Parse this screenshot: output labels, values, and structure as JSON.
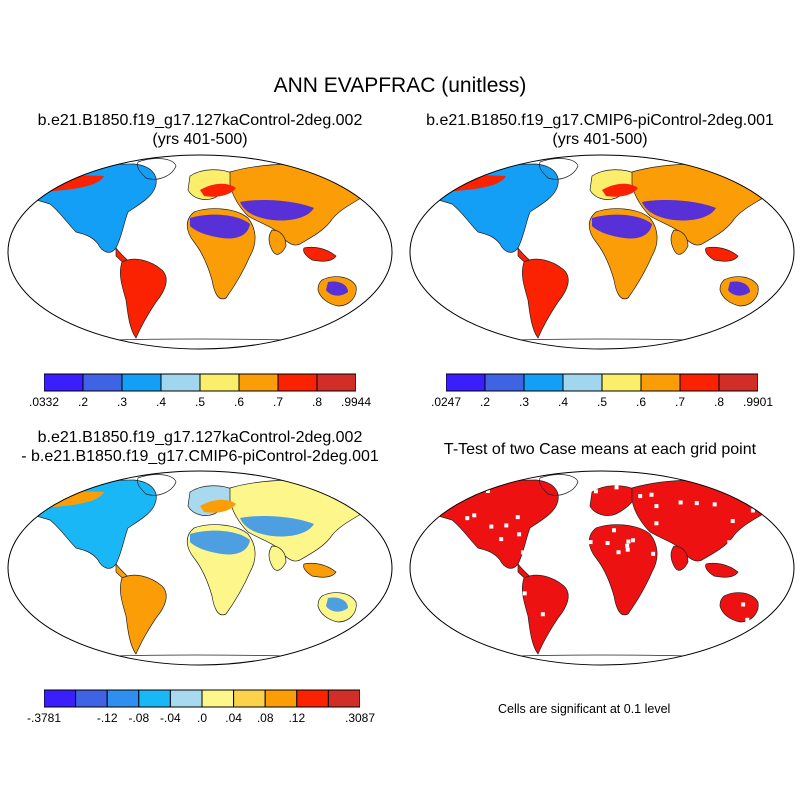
{
  "title": "ANN EVAPFRAC (unitless)",
  "panels": {
    "tl": {
      "line1": "b.e21.B1850.f19_g17.127kaControl-2deg.002",
      "line2": "(yrs 401-500)"
    },
    "tr": {
      "line1": "b.e21.B1850.f19_g17.CMIP6-piControl-2deg.001",
      "line2": "(yrs 401-500)"
    },
    "bl": {
      "line1": "b.e21.B1850.f19_g17.127kaControl-2deg.002",
      "line2": "- b.e21.B1850.f19_g17.CMIP6-piControl-2deg.001"
    },
    "br": {
      "line1": "T-Test of two Case means at each grid point"
    }
  },
  "colorbars": {
    "case1": {
      "colors": [
        "#3a1efb",
        "#3f63e5",
        "#139ff5",
        "#a0d6ee",
        "#fbee6b",
        "#fb9d07",
        "#fa2200",
        "#d22e28"
      ],
      "labels": [
        ".0332",
        ".2",
        ".3",
        ".4",
        ".5",
        ".6",
        ".7",
        ".8",
        ".9944"
      ]
    },
    "case2": {
      "colors": [
        "#3a1efb",
        "#3f63e5",
        "#139ff5",
        "#a0d6ee",
        "#fbee6b",
        "#fb9d07",
        "#fa2200",
        "#d22e28"
      ],
      "labels": [
        ".0247",
        ".2",
        ".3",
        ".4",
        ".5",
        ".6",
        ".7",
        ".8",
        ".9901"
      ]
    },
    "diff": {
      "colors": [
        "#3a1efb",
        "#3f63e5",
        "#2f8ff0",
        "#19b7f5",
        "#a8d9ef",
        "#fdf68b",
        "#fbd24a",
        "#fb9d07",
        "#fa2200",
        "#d22e28"
      ],
      "labels": [
        "-.3781",
        "",
        "-.12",
        "-.08",
        "-.04",
        ".0",
        ".04",
        ".08",
        ".12",
        "",
        ".3087"
      ]
    }
  },
  "significance_note": "Cells are significant at 0.1 level"
}
